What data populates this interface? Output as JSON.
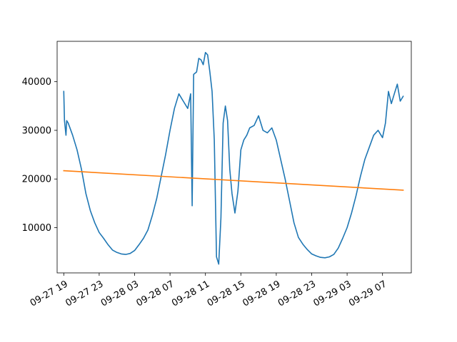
{
  "chart_data": {
    "type": "line",
    "title": "",
    "xlabel": "",
    "ylabel": "",
    "grid": false,
    "legend": "none",
    "xlim": [
      "2022-09-27T18:15",
      "2022-09-29T10:15"
    ],
    "ylim": [
      700,
      48300
    ],
    "x_ticks": [
      {
        "value": "2022-09-27T19:00",
        "label": "09-27 19"
      },
      {
        "value": "2022-09-27T23:00",
        "label": "09-27 23"
      },
      {
        "value": "2022-09-28T03:00",
        "label": "09-28 03"
      },
      {
        "value": "2022-09-28T07:00",
        "label": "09-28 07"
      },
      {
        "value": "2022-09-28T11:00",
        "label": "09-28 11"
      },
      {
        "value": "2022-09-28T15:00",
        "label": "09-28 15"
      },
      {
        "value": "2022-09-28T19:00",
        "label": "09-28 19"
      },
      {
        "value": "2022-09-28T23:00",
        "label": "09-28 23"
      },
      {
        "value": "2022-09-29T03:00",
        "label": "09-29 03"
      },
      {
        "value": "2022-09-29T07:00",
        "label": "09-29 07"
      }
    ],
    "y_ticks": [
      {
        "value": 10000,
        "label": "10000"
      },
      {
        "value": 20000,
        "label": "20000"
      },
      {
        "value": 30000,
        "label": "30000"
      },
      {
        "value": 40000,
        "label": "40000"
      }
    ],
    "series": [
      {
        "color": "#1f77b4",
        "x": [
          "2022-09-27T19:00",
          "2022-09-27T19:05",
          "2022-09-27T19:15",
          "2022-09-27T19:20",
          "2022-09-27T19:30",
          "2022-09-27T20:00",
          "2022-09-27T20:30",
          "2022-09-27T21:00",
          "2022-09-27T21:30",
          "2022-09-27T22:00",
          "2022-09-27T22:30",
          "2022-09-27T23:00",
          "2022-09-27T23:30",
          "2022-09-28T00:00",
          "2022-09-28T00:30",
          "2022-09-28T01:00",
          "2022-09-28T01:30",
          "2022-09-28T02:00",
          "2022-09-28T02:30",
          "2022-09-28T03:00",
          "2022-09-28T03:30",
          "2022-09-28T04:00",
          "2022-09-28T04:30",
          "2022-09-28T05:00",
          "2022-09-28T05:30",
          "2022-09-28T06:00",
          "2022-09-28T06:30",
          "2022-09-28T07:00",
          "2022-09-28T07:30",
          "2022-09-28T08:00",
          "2022-09-28T08:30",
          "2022-09-28T09:00",
          "2022-09-28T09:20",
          "2022-09-28T09:30",
          "2022-09-28T09:40",
          "2022-09-28T10:00",
          "2022-09-28T10:15",
          "2022-09-28T10:30",
          "2022-09-28T10:45",
          "2022-09-28T11:00",
          "2022-09-28T11:15",
          "2022-09-28T11:30",
          "2022-09-28T11:45",
          "2022-09-28T12:00",
          "2022-09-28T12:15",
          "2022-09-28T12:30",
          "2022-09-28T12:45",
          "2022-09-28T13:00",
          "2022-09-28T13:15",
          "2022-09-28T13:30",
          "2022-09-28T13:45",
          "2022-09-28T14:00",
          "2022-09-28T14:20",
          "2022-09-28T14:40",
          "2022-09-28T15:00",
          "2022-09-28T15:20",
          "2022-09-28T15:40",
          "2022-09-28T16:00",
          "2022-09-28T16:30",
          "2022-09-28T17:00",
          "2022-09-28T17:30",
          "2022-09-28T18:00",
          "2022-09-28T18:30",
          "2022-09-28T19:00",
          "2022-09-28T19:30",
          "2022-09-28T20:00",
          "2022-09-28T20:30",
          "2022-09-28T21:00",
          "2022-09-28T21:30",
          "2022-09-28T22:00",
          "2022-09-28T22:30",
          "2022-09-28T23:00",
          "2022-09-28T23:30",
          "2022-09-29T00:00",
          "2022-09-29T00:30",
          "2022-09-29T01:00",
          "2022-09-29T01:30",
          "2022-09-29T02:00",
          "2022-09-29T02:30",
          "2022-09-29T03:00",
          "2022-09-29T03:30",
          "2022-09-29T04:00",
          "2022-09-29T04:30",
          "2022-09-29T05:00",
          "2022-09-29T05:30",
          "2022-09-29T06:00",
          "2022-09-29T06:30",
          "2022-09-29T07:00",
          "2022-09-29T07:20",
          "2022-09-29T07:40",
          "2022-09-29T08:00",
          "2022-09-29T08:20",
          "2022-09-29T08:40",
          "2022-09-29T09:00",
          "2022-09-29T09:20"
        ],
        "values": [
          38000,
          32000,
          29000,
          32000,
          31500,
          29000,
          26000,
          22000,
          17000,
          13500,
          11000,
          9000,
          7800,
          6500,
          5400,
          4900,
          4600,
          4500,
          4700,
          5300,
          6500,
          7800,
          9500,
          12500,
          16000,
          20500,
          25000,
          30000,
          34500,
          37500,
          36000,
          34500,
          37500,
          14500,
          41500,
          42000,
          44800,
          44500,
          43500,
          46000,
          45500,
          42000,
          38000,
          28000,
          4000,
          2500,
          12000,
          31500,
          35000,
          32000,
          22000,
          17000,
          13000,
          17500,
          26000,
          28000,
          29000,
          30500,
          31000,
          33000,
          30000,
          29500,
          30500,
          28000,
          24000,
          20000,
          15500,
          11000,
          8000,
          6600,
          5500,
          4600,
          4200,
          3900,
          3800,
          4000,
          4500,
          5800,
          7800,
          10000,
          13000,
          16500,
          20500,
          24000,
          26500,
          29000,
          30000,
          28500,
          31500,
          38000,
          35500,
          37500,
          39500,
          36000,
          37000
        ]
      },
      {
        "color": "#ff7f0e",
        "x": [
          "2022-09-27T19:00",
          "2022-09-29T09:20"
        ],
        "values": [
          21700,
          17700
        ]
      }
    ]
  }
}
